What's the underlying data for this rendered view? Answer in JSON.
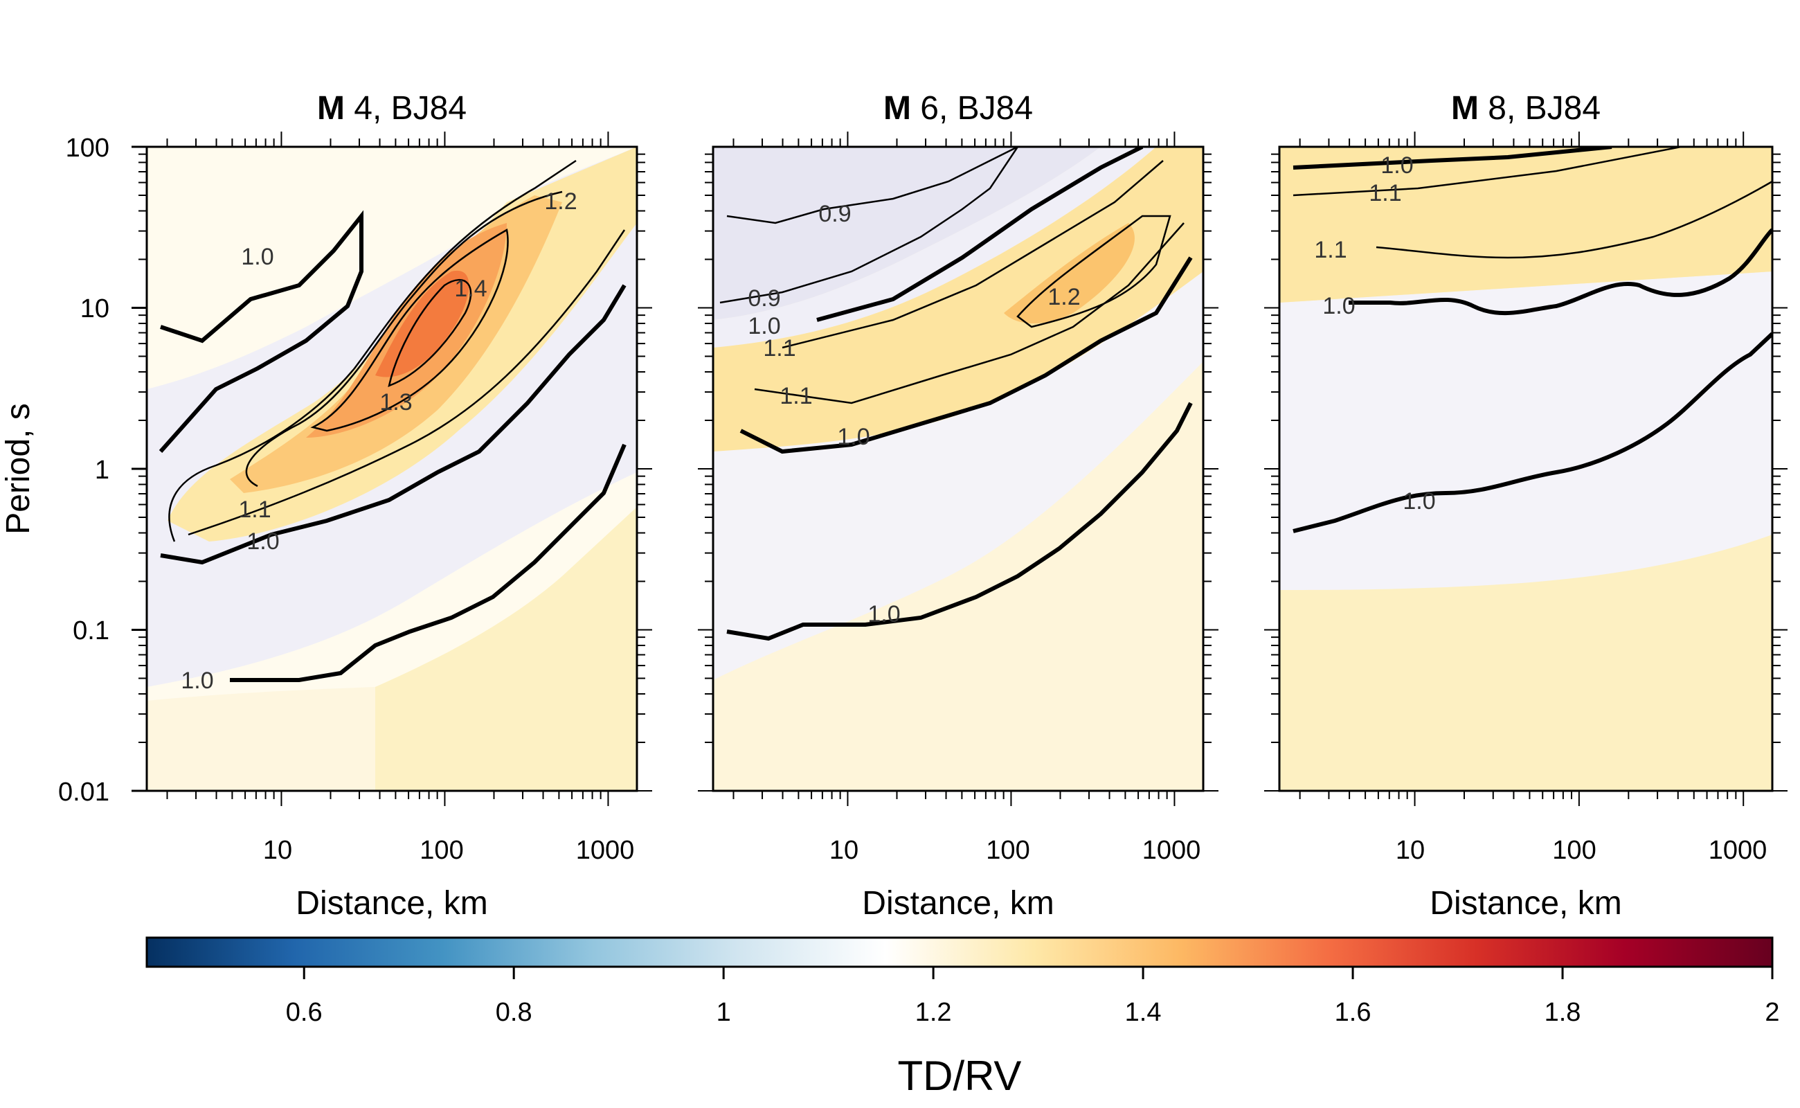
{
  "chart_data": {
    "type": "heatmap",
    "panels": [
      {
        "title_bold": "M",
        "title_rest": " 4, BJ84",
        "xlabel": "Distance, km",
        "ylabel": "Period, s",
        "xscale": "log",
        "yscale": "log",
        "xlim": [
          1.5,
          1500
        ],
        "ylim": [
          0.01,
          100
        ],
        "x_tick_labels": [
          "10",
          "100",
          "1000"
        ],
        "y_tick_labels": [
          "0.01",
          "0.1",
          "1",
          "10",
          "100"
        ],
        "peak": {
          "x": 100,
          "y": 7,
          "value": 1.45
        },
        "contour_labels": [
          "1.0",
          "1.2",
          "1.4",
          "1.3",
          "1.1",
          "1.0",
          "1.0"
        ]
      },
      {
        "title_bold": "M",
        "title_rest": " 6, BJ84",
        "xlabel": "Distance, km",
        "xscale": "log",
        "yscale": "log",
        "xlim": [
          1.5,
          1500
        ],
        "ylim": [
          0.01,
          100
        ],
        "x_tick_labels": [
          "10",
          "100",
          "1000"
        ],
        "peak": {
          "x": 400,
          "y": 20,
          "value": 1.25
        },
        "contour_labels": [
          "0.9",
          "0.9",
          "1.0",
          "1.1",
          "1.1",
          "1.2",
          "1.0",
          "1.0"
        ]
      },
      {
        "title_bold": "M",
        "title_rest": " 8, BJ84",
        "xlabel": "Distance, km",
        "xscale": "log",
        "yscale": "log",
        "xlim": [
          1.5,
          1500
        ],
        "ylim": [
          0.01,
          100
        ],
        "x_tick_labels": [
          "10",
          "100",
          "1000"
        ],
        "peak": {
          "x": 30,
          "y": 50,
          "value": 1.12
        },
        "contour_labels": [
          "1.0",
          "1.1",
          "1.1",
          "1.0",
          "1.0"
        ]
      }
    ],
    "colorbar": {
      "label": "TD/RV",
      "range": [
        0.45,
        2.0
      ],
      "tick_labels": [
        "0.6",
        "0.8",
        "1",
        "1.2",
        "1.4",
        "1.6",
        "1.8",
        "2"
      ],
      "colors": [
        "#053061",
        "#2166ac",
        "#4393c3",
        "#92c5de",
        "#d1e5f0",
        "#ffffff",
        "#fee8a8",
        "#fdb863",
        "#f46d43",
        "#d73027",
        "#a50026",
        "#67001f"
      ]
    },
    "contour_levels": [
      0.9,
      1.0,
      1.1,
      1.2,
      1.3,
      1.4
    ]
  }
}
